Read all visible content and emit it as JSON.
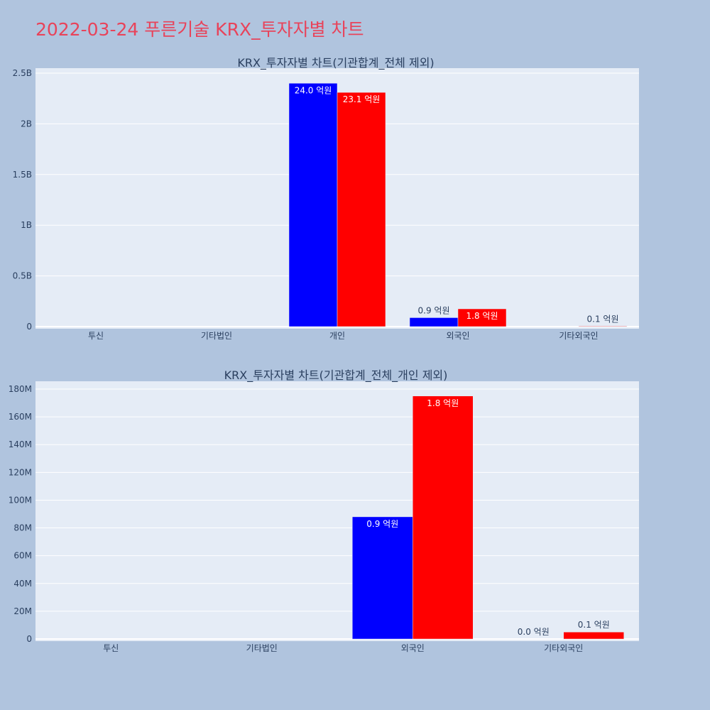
{
  "page_title": "2022-03-24 푸른기술 KRX_투자자별 차트",
  "colors": {
    "background": "#b0c4de",
    "plot_background": "#e5ecf6",
    "title": "#e8435a",
    "series_buy": "#0000ff",
    "series_sell": "#ff0000"
  },
  "chart_data": [
    {
      "type": "bar",
      "title": "KRX_투자자별 차트(기관합계_전체 제외)",
      "categories": [
        "투신",
        "기타법인",
        "개인",
        "외국인",
        "기타외국인"
      ],
      "ylim": [
        0,
        2500000000
      ],
      "yticks": [
        0,
        500000000,
        1000000000,
        1500000000,
        2000000000,
        2500000000
      ],
      "ytick_labels": [
        "0",
        "0.5B",
        "1B",
        "1.5B",
        "2B",
        "2.5B"
      ],
      "grid": true,
      "series": [
        {
          "color": "#0000ff",
          "values": [
            0,
            0,
            2400000000,
            88000000,
            0
          ],
          "labels": [
            "",
            "",
            "24.0 억원",
            "0.9 억원",
            ""
          ]
        },
        {
          "color": "#ff0000",
          "values": [
            0,
            0,
            2310000000,
            175000000,
            5000000
          ],
          "labels": [
            "",
            "",
            "23.1 억원",
            "1.8 억원",
            "0.1 억원"
          ]
        }
      ]
    },
    {
      "type": "bar",
      "title": "KRX_투자자별 차트(기관합계_전체_개인 제외)",
      "categories": [
        "투신",
        "기타법인",
        "외국인",
        "기타외국인"
      ],
      "ylim": [
        0,
        185000000
      ],
      "yticks": [
        0,
        20000000,
        40000000,
        60000000,
        80000000,
        100000000,
        120000000,
        140000000,
        160000000,
        180000000
      ],
      "ytick_labels": [
        "0",
        "20M",
        "40M",
        "60M",
        "80M",
        "100M",
        "120M",
        "140M",
        "160M",
        "180M"
      ],
      "grid": true,
      "series": [
        {
          "color": "#0000ff",
          "values": [
            0,
            0,
            88000000,
            0
          ],
          "labels": [
            "",
            "",
            "0.9 억원",
            "0.0 억원"
          ]
        },
        {
          "color": "#ff0000",
          "values": [
            0,
            0,
            175000000,
            5000000
          ],
          "labels": [
            "",
            "",
            "1.8 억원",
            "0.1 억원"
          ]
        }
      ]
    }
  ]
}
